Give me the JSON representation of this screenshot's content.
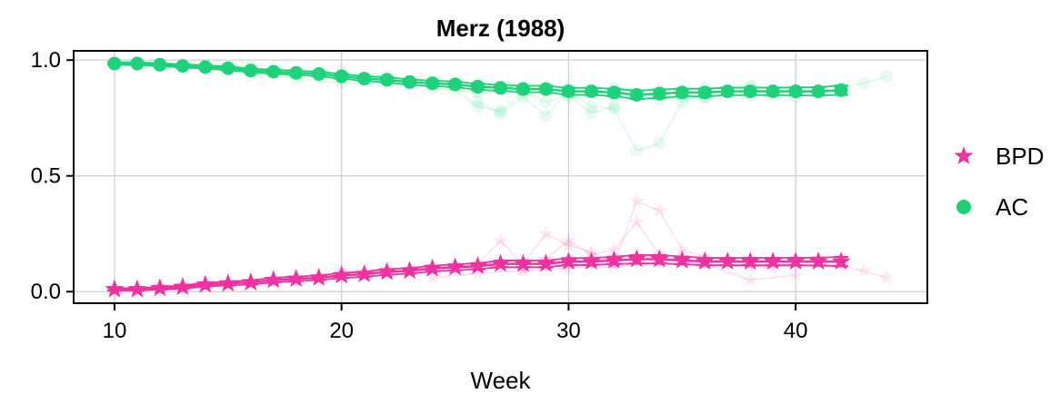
{
  "chart_data": {
    "type": "line",
    "title": "Merz (1988)",
    "xlabel": "Week",
    "ylabel": "",
    "xlim": [
      8.2,
      45.8
    ],
    "ylim": [
      -0.05,
      1.04
    ],
    "x_ticks": [
      10,
      20,
      30,
      40
    ],
    "y_ticks": [
      0.0,
      0.5,
      1.0
    ],
    "x_tick_labels": [
      "10",
      "20",
      "30",
      "40"
    ],
    "y_tick_labels": [
      "0.0",
      "0.5",
      "1.0"
    ],
    "grid": true,
    "legend_position": "right",
    "x": [
      10,
      11,
      12,
      13,
      14,
      15,
      16,
      17,
      18,
      19,
      20,
      21,
      22,
      23,
      24,
      25,
      26,
      27,
      28,
      29,
      30,
      31,
      32,
      33,
      34,
      35,
      36,
      37,
      38,
      39,
      40,
      41,
      42
    ],
    "series": [
      {
        "name": "BPD",
        "color": "#f032a0",
        "marker": "star",
        "values": [
          0.01,
          0.01,
          0.015,
          0.02,
          0.03,
          0.035,
          0.04,
          0.05,
          0.055,
          0.06,
          0.07,
          0.075,
          0.085,
          0.09,
          0.1,
          0.105,
          0.11,
          0.12,
          0.12,
          0.12,
          0.13,
          0.13,
          0.135,
          0.14,
          0.14,
          0.135,
          0.13,
          0.13,
          0.13,
          0.13,
          0.13,
          0.13,
          0.13
        ],
        "err": [
          0.005,
          0.005,
          0.006,
          0.007,
          0.008,
          0.008,
          0.009,
          0.01,
          0.01,
          0.01,
          0.011,
          0.011,
          0.012,
          0.012,
          0.012,
          0.013,
          0.013,
          0.014,
          0.014,
          0.014,
          0.015,
          0.015,
          0.016,
          0.018,
          0.018,
          0.017,
          0.016,
          0.016,
          0.016,
          0.016,
          0.016,
          0.017,
          0.02
        ]
      },
      {
        "name": "AC",
        "color": "#1ed27a",
        "marker": "circle",
        "values": [
          0.985,
          0.985,
          0.98,
          0.975,
          0.97,
          0.965,
          0.955,
          0.95,
          0.945,
          0.94,
          0.93,
          0.92,
          0.915,
          0.905,
          0.9,
          0.895,
          0.885,
          0.88,
          0.875,
          0.875,
          0.865,
          0.865,
          0.86,
          0.85,
          0.855,
          0.86,
          0.86,
          0.865,
          0.865,
          0.865,
          0.865,
          0.865,
          0.87
        ],
        "err": [
          0.006,
          0.006,
          0.006,
          0.007,
          0.007,
          0.008,
          0.008,
          0.009,
          0.009,
          0.01,
          0.01,
          0.01,
          0.011,
          0.011,
          0.012,
          0.012,
          0.013,
          0.013,
          0.014,
          0.014,
          0.015,
          0.015,
          0.016,
          0.018,
          0.018,
          0.017,
          0.016,
          0.016,
          0.016,
          0.016,
          0.017,
          0.018,
          0.02
        ]
      }
    ],
    "faint_series": [
      {
        "color": "#f032a0",
        "lines": [
          {
            "x": [
              26,
              27,
              28,
              29,
              30,
              31,
              32,
              33,
              34,
              35,
              36,
              37,
              38
            ],
            "y": [
              0.12,
              0.22,
              0.12,
              0.25,
              0.2,
              0.17,
              0.12,
              0.39,
              0.35,
              0.18,
              0.15,
              0.13,
              0.12
            ]
          },
          {
            "x": [
              28,
              29,
              30,
              31,
              32,
              33,
              34
            ],
            "y": [
              0.13,
              0.14,
              0.22,
              0.16,
              0.18,
              0.3,
              0.16
            ]
          },
          {
            "x": [
              38,
              39,
              40,
              41,
              42,
              43,
              44
            ],
            "y": [
              0.12,
              0.1,
              0.14,
              0.12,
              0.11,
              0.09,
              0.06
            ]
          },
          {
            "x": [
              20,
              22,
              24,
              26,
              28,
              30,
              32,
              34,
              36,
              38,
              40
            ],
            "y": [
              0.09,
              0.1,
              0.1,
              0.11,
              0.1,
              0.12,
              0.12,
              0.13,
              0.12,
              0.11,
              0.12
            ]
          },
          {
            "x": [
              24,
              26,
              28,
              30,
              32,
              34,
              36,
              38,
              40
            ],
            "y": [
              0.06,
              0.08,
              0.09,
              0.1,
              0.11,
              0.12,
              0.12,
              0.05,
              0.07
            ]
          }
        ]
      },
      {
        "color": "#1ed27a",
        "lines": [
          {
            "x": [
              26,
              27,
              28,
              29,
              30,
              31,
              32,
              33,
              34,
              35,
              36
            ],
            "y": [
              0.82,
              0.77,
              0.84,
              0.76,
              0.87,
              0.8,
              0.79,
              0.61,
              0.64,
              0.82,
              0.84
            ]
          },
          {
            "x": [
              25,
              26,
              27,
              28,
              29,
              30,
              31,
              32
            ],
            "y": [
              0.87,
              0.8,
              0.78,
              0.86,
              0.82,
              0.85,
              0.77,
              0.8
            ]
          },
          {
            "x": [
              38,
              39,
              40,
              41,
              42,
              43,
              44
            ],
            "y": [
              0.88,
              0.85,
              0.86,
              0.86,
              0.88,
              0.9,
              0.93
            ]
          },
          {
            "x": [
              16,
              18,
              20,
              22,
              24,
              26,
              28,
              30,
              32,
              34,
              36,
              38,
              40
            ],
            "y": [
              0.97,
              0.92,
              0.9,
              0.9,
              0.88,
              0.86,
              0.88,
              0.84,
              0.85,
              0.83,
              0.84,
              0.85,
              0.84
            ]
          },
          {
            "x": [
              20,
              22,
              24,
              26,
              28,
              30,
              32,
              34,
              36,
              38,
              40
            ],
            "y": [
              0.95,
              0.93,
              0.91,
              0.9,
              0.89,
              0.88,
              0.88,
              0.87,
              0.88,
              0.89,
              0.87
            ]
          }
        ]
      }
    ]
  }
}
